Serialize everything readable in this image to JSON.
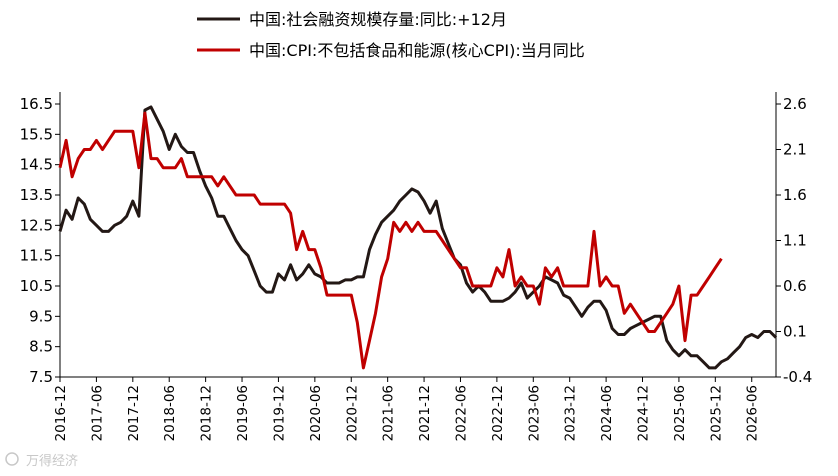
{
  "chart_data": {
    "type": "line",
    "legend_position": "top-center",
    "grid": false,
    "left_axis": {
      "ticks": [
        "16.5",
        "15.5",
        "14.5",
        "13.5",
        "12.5",
        "11.5",
        "10.5",
        "9.5",
        "8.5",
        "7.5"
      ],
      "range": [
        7.5,
        16.5
      ]
    },
    "right_axis": {
      "ticks": [
        "2.6",
        "2.1",
        "1.6",
        "1.1",
        "0.6",
        "0.1",
        "-0.4"
      ],
      "range": [
        -0.4,
        2.6
      ]
    },
    "x_ticks": [
      "2016-12",
      "2017-06",
      "2017-12",
      "2018-06",
      "2018-12",
      "2019-06",
      "2019-12",
      "2020-06",
      "2020-12",
      "2021-06",
      "2021-12",
      "2022-06",
      "2022-12",
      "2023-06",
      "2023-12",
      "2024-06",
      "2024-12",
      "2025-06",
      "2025-12",
      "2026-06"
    ],
    "x_start": "2016-12",
    "series": [
      {
        "name": "中国:社会融资规模存量:同比:+12月",
        "axis": "left",
        "color": "#231815",
        "start": "2016-12",
        "values": [
          12.3,
          13.0,
          12.7,
          13.4,
          13.2,
          12.7,
          12.5,
          12.3,
          12.3,
          12.5,
          12.6,
          12.8,
          13.3,
          12.8,
          16.3,
          16.4,
          16.0,
          15.6,
          15.0,
          15.5,
          15.1,
          14.9,
          14.9,
          14.3,
          13.8,
          13.4,
          12.8,
          12.8,
          12.4,
          12.0,
          11.7,
          11.5,
          11.0,
          10.5,
          10.3,
          10.3,
          10.9,
          10.7,
          11.2,
          10.7,
          10.9,
          11.2,
          10.9,
          10.8,
          10.6,
          10.6,
          10.6,
          10.7,
          10.7,
          10.8,
          10.8,
          11.7,
          12.2,
          12.6,
          12.8,
          13.0,
          13.3,
          13.5,
          13.7,
          13.6,
          13.3,
          12.9,
          13.3,
          12.4,
          11.9,
          11.4,
          11.2,
          10.6,
          10.3,
          10.5,
          10.3,
          10.0,
          10.0,
          10.0,
          10.1,
          10.3,
          10.6,
          10.1,
          10.3,
          10.5,
          10.8,
          10.7,
          10.6,
          10.2,
          10.1,
          9.8,
          9.5,
          9.8,
          10.0,
          10.0,
          9.7,
          9.1,
          8.9,
          8.9,
          9.1,
          9.2,
          9.3,
          9.4,
          9.5,
          9.5,
          8.7,
          8.4,
          8.2,
          8.4,
          8.2,
          8.2,
          8.0,
          7.8,
          7.8,
          8.0,
          8.1,
          8.3,
          8.5,
          8.8,
          8.9,
          8.8,
          9.0,
          9.0,
          8.8
        ]
      },
      {
        "name": "中国:CPI:不包括食品和能源(核心CPI):当月同比",
        "axis": "right",
        "color": "#c00000",
        "start": "2016-12",
        "values": [
          1.9,
          2.2,
          1.8,
          2.0,
          2.1,
          2.1,
          2.2,
          2.1,
          2.2,
          2.3,
          2.3,
          2.3,
          2.3,
          1.9,
          2.5,
          2.0,
          2.0,
          1.9,
          1.9,
          1.9,
          2.0,
          1.8,
          1.8,
          1.8,
          1.8,
          1.8,
          1.7,
          1.8,
          1.7,
          1.6,
          1.6,
          1.6,
          1.6,
          1.5,
          1.5,
          1.5,
          1.5,
          1.5,
          1.4,
          1.0,
          1.2,
          1.0,
          1.0,
          0.8,
          0.5,
          0.5,
          0.5,
          0.5,
          0.5,
          0.2,
          -0.3,
          0.0,
          0.3,
          0.7,
          0.9,
          1.3,
          1.2,
          1.3,
          1.2,
          1.3,
          1.2,
          1.2,
          1.2,
          1.1,
          1.0,
          0.9,
          0.8,
          0.8,
          0.6,
          0.6,
          0.6,
          0.6,
          0.8,
          0.7,
          1.0,
          0.6,
          0.7,
          0.6,
          0.6,
          0.4,
          0.8,
          0.7,
          0.8,
          0.6,
          0.6,
          0.6,
          0.6,
          0.6,
          1.2,
          0.6,
          0.7,
          0.6,
          0.6,
          0.3,
          0.4,
          0.3,
          0.2,
          0.1,
          0.1,
          0.2,
          0.3,
          0.4,
          0.6,
          0.0,
          0.5,
          0.5,
          0.6,
          0.7,
          0.8,
          0.9
        ]
      }
    ]
  },
  "watermark": "万得经济"
}
